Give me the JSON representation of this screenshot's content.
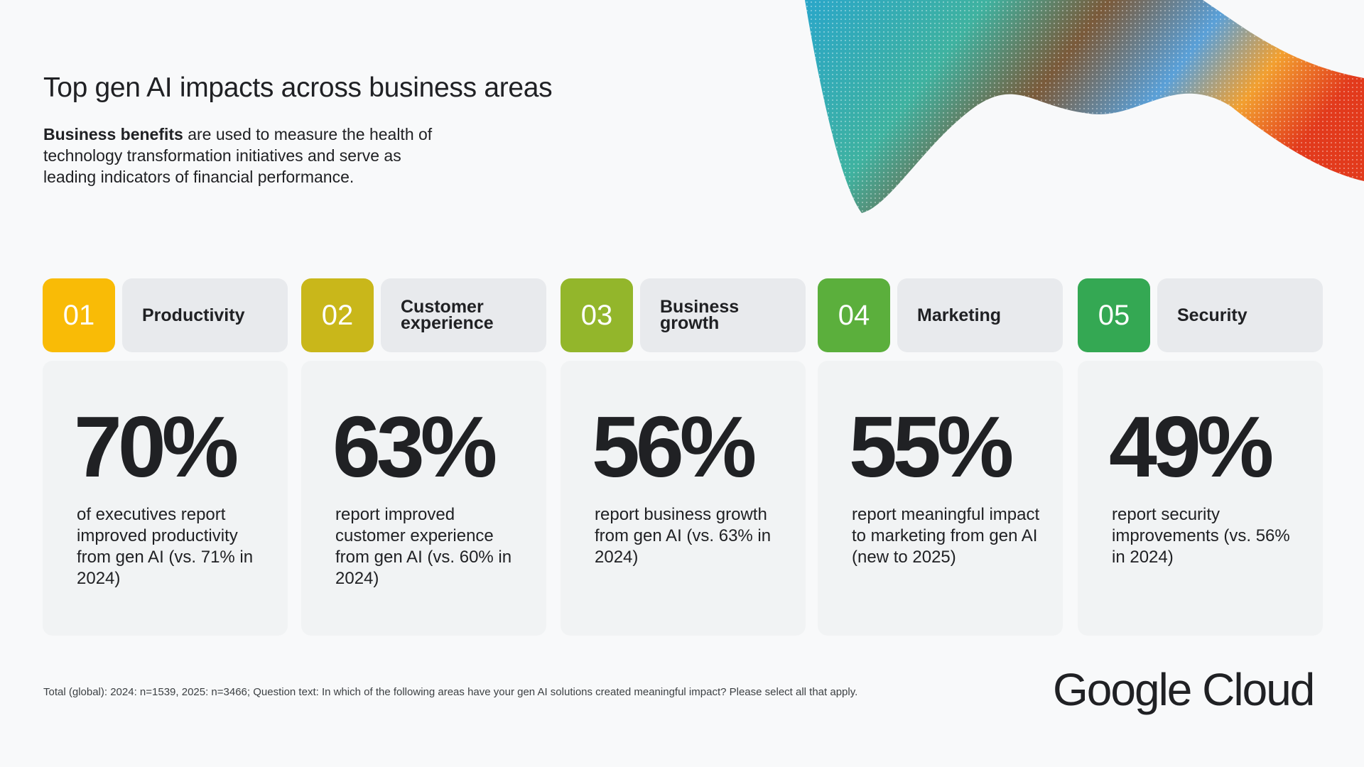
{
  "header": {
    "title": "Top gen AI impacts across business areas",
    "intro_bold": "Business benefits",
    "intro_rest": " are used to measure the health of technology transformation initiatives and serve as leading indicators of financial performance."
  },
  "areas": [
    {
      "num": "01",
      "label": "Productivity",
      "pct": "70%",
      "desc": "of executives report improved productivity from gen AI (vs. 71% in 2024)",
      "color": "#F9BB06"
    },
    {
      "num": "02",
      "label": "Customer experience",
      "pct": "63%",
      "desc": "report improved customer experience from gen AI (vs. 60% in 2024)",
      "color": "#C9B71A"
    },
    {
      "num": "03",
      "label": "Business growth",
      "pct": "56%",
      "desc": "report business growth from gen AI (vs. 63% in 2024)",
      "color": "#93B62B"
    },
    {
      "num": "04",
      "label": "Marketing",
      "pct": "55%",
      "desc": "report meaningful impact to marketing from gen AI (new to 2025)",
      "color": "#5BAF3C"
    },
    {
      "num": "05",
      "label": "Security",
      "pct": "49%",
      "desc": "report security improvements (vs. 56% in 2024)",
      "color": "#34A853"
    }
  ],
  "footer": {
    "note": "Total (global): 2024: n=1539, 2025: n=3466; Question text: In which of the following areas have your gen AI solutions created meaningful impact? Please select all that apply.",
    "logo": "Google Cloud"
  }
}
